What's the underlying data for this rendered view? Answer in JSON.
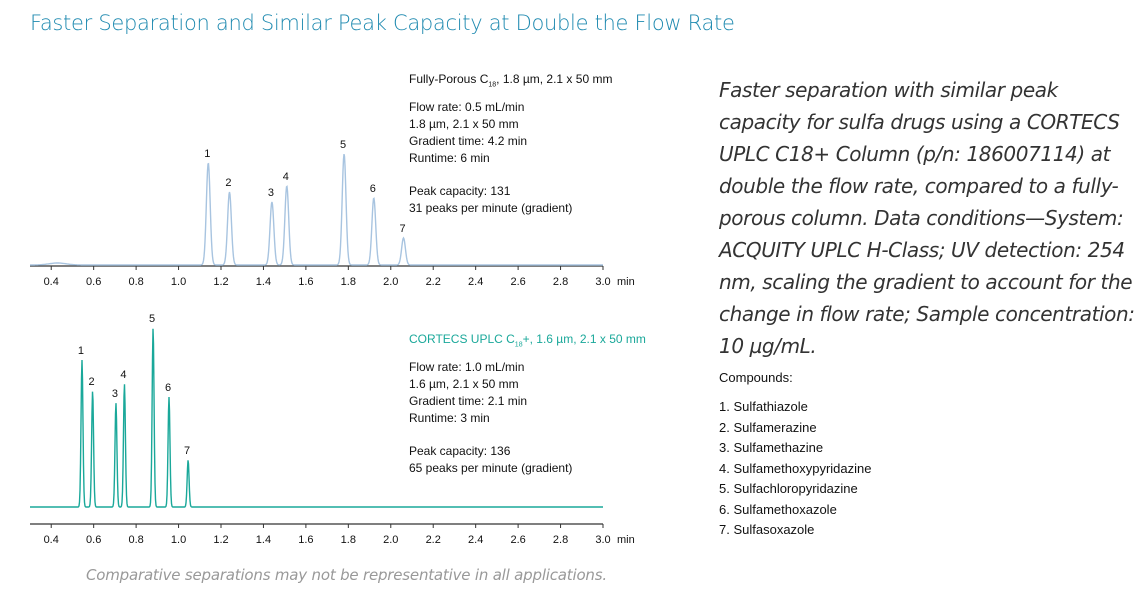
{
  "title": "Faster Separation and Similar Peak Capacity at Double the Flow Rate",
  "chart_data": [
    {
      "type": "line",
      "name": "fully-porous",
      "color": "#a8c4e0",
      "column_label": {
        "prefix": "Fully-Porous C",
        "sub": "18",
        "suffix": ", 1.8 µm, 2.1 x 50 mm"
      },
      "conditions": [
        "Flow rate: 0.5 mL/min",
        "1.8 µm, 2.1 x 50 mm",
        "Gradient time: 4.2 min",
        "Runtime: 6 min"
      ],
      "capacity": [
        "Peak capacity: 131",
        "31 peaks per minute (gradient)"
      ],
      "xlabel": "min",
      "xlim": [
        0.3,
        3.0
      ],
      "xticks": [
        "0.4",
        "0.6",
        "0.8",
        "1.0",
        "1.2",
        "1.4",
        "1.6",
        "1.8",
        "2.0",
        "2.2",
        "2.4",
        "2.6",
        "2.8",
        "3.0"
      ],
      "ylim": [
        0,
        190
      ],
      "peak_width_min": 0.009,
      "peaks": [
        {
          "label": "1",
          "rt": 1.14,
          "height": 102
        },
        {
          "label": "2",
          "rt": 1.24,
          "height": 73
        },
        {
          "label": "3",
          "rt": 1.44,
          "height": 63
        },
        {
          "label": "4",
          "rt": 1.51,
          "height": 79
        },
        {
          "label": "5",
          "rt": 1.78,
          "height": 111
        },
        {
          "label": "6",
          "rt": 1.92,
          "height": 67
        },
        {
          "label": "7",
          "rt": 2.06,
          "height": 27
        }
      ]
    },
    {
      "type": "line",
      "name": "cortecs",
      "color": "#1aa89a",
      "column_label": {
        "prefix": "CORTECS UPLC C",
        "sub": "18",
        "suffix": "+, 1.6 µm, 2.1 x 50 mm"
      },
      "conditions": [
        "Flow rate: 1.0 mL/min",
        "1.6 µm, 2.1 x 50 mm",
        "Gradient time: 2.1 min",
        "Runtime: 3 min"
      ],
      "capacity": [
        "Peak capacity: 136",
        "65 peaks per minute (gradient)"
      ],
      "xlabel": "min",
      "xlim": [
        0.3,
        3.0
      ],
      "xticks": [
        "0.4",
        "0.6",
        "0.8",
        "1.0",
        "1.2",
        "1.4",
        "1.6",
        "1.8",
        "2.0",
        "2.2",
        "2.4",
        "2.6",
        "2.8",
        "3.0"
      ],
      "ylim": [
        0,
        190
      ],
      "peak_width_min": 0.0045,
      "peaks": [
        {
          "label": "1",
          "rt": 0.545,
          "height": 147
        },
        {
          "label": "2",
          "rt": 0.595,
          "height": 116
        },
        {
          "label": "3",
          "rt": 0.705,
          "height": 104
        },
        {
          "label": "4",
          "rt": 0.745,
          "height": 123
        },
        {
          "label": "5",
          "rt": 0.88,
          "height": 179
        },
        {
          "label": "6",
          "rt": 0.955,
          "height": 110
        },
        {
          "label": "7",
          "rt": 1.045,
          "height": 47
        }
      ]
    }
  ],
  "description": "Faster separation with similar peak capacity for sulfa drugs using a CORTECS UPLC C18+ Column (p/n: 186007114) at double the flow rate, compared to a fully-porous column. Data conditions—System: ACQUITY UPLC H-Class; UV detection: 254 nm, scaling the gradient to account for the change in flow rate; Sample concentration: 10 µg/mL.",
  "compounds": {
    "heading": "Compounds:",
    "items": [
      "1. Sulfathiazole",
      "2. Sulfamerazine",
      "3. Sulfamethazine",
      "4. Sulfamethoxypyridazine",
      "5. Sulfachloropyridazine",
      "6. Sulfamethoxazole",
      "7. Sulfasoxazole"
    ]
  },
  "footer": "Comparative separations may not be representative in all applications."
}
